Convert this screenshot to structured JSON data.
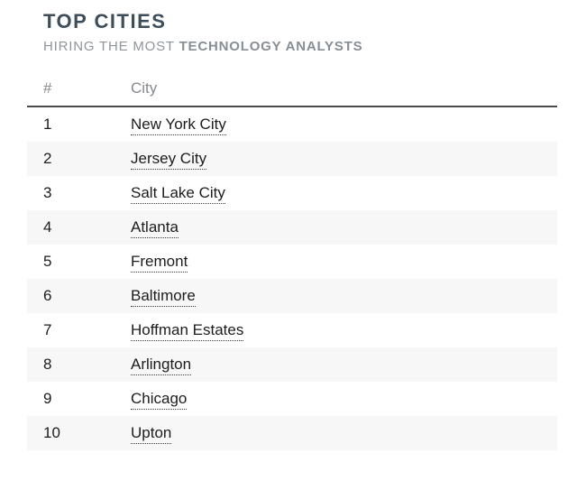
{
  "header": {
    "title": "TOP CITIES",
    "subtitle_regular": "HIRING THE MOST ",
    "subtitle_emphasis": "TECHNOLOGY ANALYSTS"
  },
  "table": {
    "columns": [
      {
        "key": "rank",
        "label": "#"
      },
      {
        "key": "city",
        "label": "City"
      }
    ],
    "rows": [
      {
        "rank": "1",
        "city": "New York City"
      },
      {
        "rank": "2",
        "city": "Jersey City"
      },
      {
        "rank": "3",
        "city": "Salt Lake City"
      },
      {
        "rank": "4",
        "city": "Atlanta"
      },
      {
        "rank": "5",
        "city": "Fremont"
      },
      {
        "rank": "6",
        "city": "Baltimore"
      },
      {
        "rank": "7",
        "city": "Hoffman Estates"
      },
      {
        "rank": "8",
        "city": "Arlington"
      },
      {
        "rank": "9",
        "city": "Chicago"
      },
      {
        "rank": "10",
        "city": "Upton"
      }
    ]
  },
  "colors": {
    "title": "#3e4d5a",
    "subtitle": "#8e959b",
    "column_header_text": "#85898d",
    "header_border": "#4b4b4b",
    "row_text": "#1c1c1c",
    "stripe_background": "#f7f7f7",
    "city_underline": "#3a3a3a"
  }
}
